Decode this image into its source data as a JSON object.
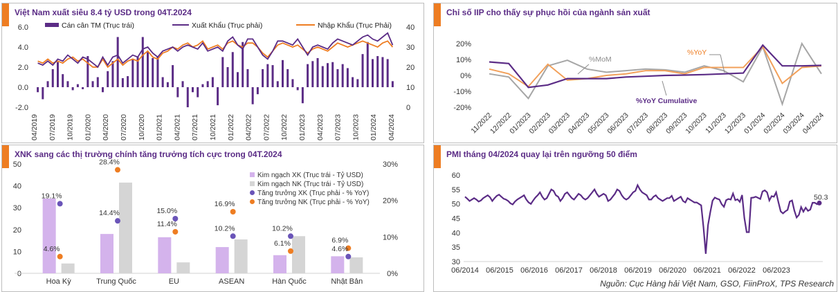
{
  "source": "Nguồn: Cục Hàng hải Việt Nam, GSO, FiinProX, TPS Research",
  "chart_data": [
    {
      "id": "trade",
      "type": "bar+line",
      "title": "Việt Nam xuất siêu 8.4 tỷ USD trong 04T.2024",
      "ylim_left": [
        -2,
        6
      ],
      "yticks_left": [
        "6.0",
        "4.0",
        "2.0",
        "0.0",
        "-2.0"
      ],
      "ylim_right": [
        0,
        40
      ],
      "yticks_right": [
        "40",
        "30",
        "20",
        "10",
        "0"
      ],
      "xticks": [
        "04/2019",
        "07/2019",
        "10/2019",
        "01/2020",
        "04/2020",
        "07/2020",
        "10/2020",
        "01/2021",
        "04/2021",
        "07/2021",
        "10/2021",
        "01/2022",
        "04/2022",
        "07/2022",
        "10/2022",
        "01/2023",
        "04/2023",
        "07/2023",
        "10/2023",
        "01/2024",
        "04/2024"
      ],
      "legend": [
        "Cán cân TM (Trục trái)",
        "Xuất Khẩu (Trục phải)",
        "Nhập Khẩu (Trục Phải)"
      ],
      "colors": {
        "bar": "#5b2c86",
        "export": "#5b2c86",
        "import": "#ee7d22"
      },
      "balance": [
        -0.5,
        -1.2,
        0.6,
        1.8,
        2.5,
        1.3,
        0.6,
        -0.3,
        0.3,
        -0.2,
        3.1,
        0.6,
        1.0,
        -0.5,
        1.6,
        2.6,
        5.0,
        0.9,
        1.1,
        2.8,
        3.0,
        5.0,
        3.5,
        2.9,
        3.0,
        1.0,
        0.5,
        2.2,
        -1.0,
        0.6,
        -2.0,
        -0.5,
        -1.0,
        0.3,
        0.6,
        1.0,
        -1.8,
        3.0,
        2.0,
        3.5,
        1.5,
        4.5,
        1.8,
        -1.7,
        -0.7,
        1.8,
        2.3,
        2.2,
        0.6,
        2.7,
        1.8,
        0.8,
        -0.3,
        -1.6,
        2.3,
        2.6,
        2.9,
        2.1,
        2.4,
        2.5,
        1.8,
        2.3,
        1.9,
        1.0,
        0.8,
        3.3,
        4.5,
        2.8,
        3.1,
        3.0,
        2.8,
        0.6
      ],
      "export": [
        22,
        21,
        23,
        21,
        24,
        23,
        26,
        24,
        22,
        25,
        24,
        22,
        20,
        25,
        21,
        25,
        26,
        22,
        24,
        26,
        25,
        29,
        30,
        27,
        25,
        28,
        29,
        30,
        28,
        30,
        31,
        30,
        29,
        32,
        28,
        29,
        30,
        28,
        33,
        35,
        31,
        29,
        34,
        34,
        30,
        26,
        24,
        28,
        33,
        33,
        32,
        31,
        34,
        30,
        26,
        30,
        31,
        30,
        29,
        32,
        34,
        33,
        32,
        31,
        33,
        35,
        36,
        34,
        33,
        35,
        37,
        31
      ],
      "import": [
        23,
        22,
        24,
        22,
        23,
        22,
        24,
        25,
        23,
        24,
        22,
        20,
        20,
        24,
        20,
        22,
        24,
        21,
        23,
        24,
        23,
        26,
        28,
        25,
        24,
        27,
        28,
        30,
        29,
        31,
        32,
        30,
        31,
        33,
        29,
        30,
        31,
        29,
        32,
        33,
        31,
        30,
        32,
        32,
        30,
        27,
        25,
        28,
        31,
        32,
        31,
        30,
        31,
        29,
        27,
        29,
        30,
        29,
        28,
        30,
        32,
        31,
        30,
        31,
        32,
        33,
        32,
        31,
        30,
        32,
        33,
        30
      ]
    },
    {
      "id": "iip",
      "type": "line",
      "title": "Chỉ số IIP cho thấy sự phục hồi của ngành sản xuất",
      "ylim": [
        -20,
        20
      ],
      "yticks": [
        "20%",
        "10%",
        "0%",
        "-10%",
        "-20%"
      ],
      "categories": [
        "11/2022",
        "12/2022",
        "01/2023",
        "02/2023",
        "03/2023",
        "04/2023",
        "05/2023",
        "06/2023",
        "07/2023",
        "08/2023",
        "09/2023",
        "10/2023",
        "11/2023",
        "12/2023",
        "01/2024",
        "02/2024",
        "03/2024",
        "04/2024"
      ],
      "series": [
        {
          "name": "%MoM",
          "color": "#a6a6a6",
          "values": [
            1,
            -1,
            -14.5,
            6,
            9.5,
            4,
            2,
            3,
            4,
            3.5,
            2,
            6,
            3,
            -4,
            18,
            -18,
            20,
            1
          ]
        },
        {
          "name": "%YoY",
          "color": "#f2a05a",
          "values": [
            4,
            1,
            -7,
            7,
            -3,
            -2,
            0,
            1,
            3,
            3,
            1,
            5,
            5,
            5,
            18,
            -5,
            5,
            6
          ]
        },
        {
          "name": "%YoY Cumulative",
          "color": "#5b2c86",
          "values": [
            8.5,
            7.5,
            -7.5,
            -6,
            -2,
            -2,
            -2,
            -1,
            -0.5,
            0,
            0.2,
            0.5,
            1,
            1.5,
            19,
            6,
            6,
            6.3
          ]
        }
      ]
    },
    {
      "id": "markets",
      "type": "bar+scatter",
      "title": "XNK sang các thị trường chính tăng trưởng tích cực trong 04T.2024",
      "ylim_left": [
        0,
        50
      ],
      "yticks_left": [
        "50",
        "40",
        "30",
        "20",
        "10",
        "0"
      ],
      "ylim_right": [
        0,
        30
      ],
      "yticks_right": [
        "30%",
        "20%",
        "10%",
        "0%"
      ],
      "categories": [
        "Hoa Kỳ",
        "Trung Quốc",
        "EU",
        "ASEAN",
        "Hàn Quốc",
        "Nhật Bản"
      ],
      "legend": [
        "Kim ngạch XK (Trục trái - Tỷ USD)",
        "Kim ngạch NK (Trục trái - Tỷ USD)",
        "Tăng trưởng XK (Trục phải - % YoY)",
        "Tăng trưởng NK (Trục phải - % YoY)"
      ],
      "colors": {
        "xk": "#d4b3ec",
        "nk": "#d5d5d5",
        "gxk": "#6a54b8",
        "gnk": "#ee7d22"
      },
      "export_value": [
        34.2,
        18.0,
        16.5,
        12.0,
        8.3,
        7.8
      ],
      "import_value": [
        4.5,
        41.5,
        5.0,
        15.5,
        17.0,
        7.3
      ],
      "export_growth": [
        19.1,
        14.4,
        15.0,
        10.2,
        10.2,
        4.6
      ],
      "import_growth": [
        4.6,
        28.4,
        11.4,
        16.9,
        6.1,
        6.9
      ],
      "export_growth_labels": [
        "19.1%",
        "14.4%",
        "15.0%",
        "10.2%",
        "10.2%",
        "4.6%"
      ],
      "import_growth_labels": [
        "4.6%",
        "28.4%",
        "11.4%",
        "16.9%",
        "6.1%",
        "6.9%"
      ]
    },
    {
      "id": "pmi",
      "type": "line",
      "title": "PMI tháng 04/2024 quay lại trên ngưỡng 50 điểm",
      "ylim": [
        30,
        60
      ],
      "yticks": [
        "60",
        "55",
        "50",
        "45",
        "40",
        "35",
        "30"
      ],
      "xticks": [
        "06/2014",
        "06/2015",
        "06/2016",
        "06/2017",
        "06/2018",
        "06/2019",
        "06/2020",
        "06/2021",
        "06/2022",
        "06/2023"
      ],
      "last_label": "50.3",
      "color": "#5b2c86",
      "values": [
        52.5,
        51.8,
        51.0,
        51.5,
        52.0,
        51.5,
        50.8,
        51.2,
        52.0,
        52.5,
        53.0,
        52.3,
        51.0,
        52.0,
        52.8,
        53.2,
        52.5,
        51.8,
        51.5,
        51.0,
        50.2,
        49.8,
        50.8,
        51.5,
        52.0,
        52.5,
        53.0,
        51.5,
        50.5,
        50.0,
        51.2,
        52.2,
        53.0,
        54.0,
        52.5,
        51.5,
        52.0,
        53.5,
        55.0,
        54.5,
        53.0,
        52.5,
        51.0,
        52.0,
        53.5,
        54.0,
        53.0,
        52.0,
        51.5,
        52.5,
        53.5,
        53.0,
        52.0,
        51.5,
        52.0,
        53.0,
        54.0,
        55.0,
        53.5,
        52.5,
        53.0,
        53.5,
        53.0,
        51.0,
        51.5,
        52.5,
        53.5,
        55.0,
        54.5,
        53.0,
        52.0,
        51.5,
        52.0,
        53.0,
        54.0,
        54.5,
        56.5,
        55.0,
        54.0,
        53.5,
        53.0,
        51.5,
        51.5,
        52.5,
        53.0,
        52.0,
        51.5,
        51.0,
        51.5,
        52.0,
        52.0,
        52.8,
        51.0,
        51.5,
        52.0,
        52.5,
        51.0,
        50.5,
        52.0,
        51.5,
        51.0,
        50.5,
        50.5,
        50.0,
        49.5,
        41.9,
        32.7,
        42.7,
        47.2,
        51.1,
        52.2,
        51.8,
        51.5,
        49.9,
        49.0,
        51.3,
        51.7,
        51.5,
        53.6,
        51.3,
        51.6,
        50.7,
        53.1,
        45.1,
        40.2,
        40.2,
        52.1,
        52.2,
        52.5,
        52.1,
        51.7,
        54.3,
        54.7,
        54.0,
        51.2,
        52.7,
        52.5,
        54.0,
        50.6,
        47.4,
        46.7,
        47.4,
        47.9,
        50.8,
        51.2,
        47.7,
        45.3,
        46.2,
        48.9,
        47.3,
        48.7,
        47.6,
        48.0,
        50.4,
        50.4,
        49.9,
        50.3
      ]
    }
  ]
}
